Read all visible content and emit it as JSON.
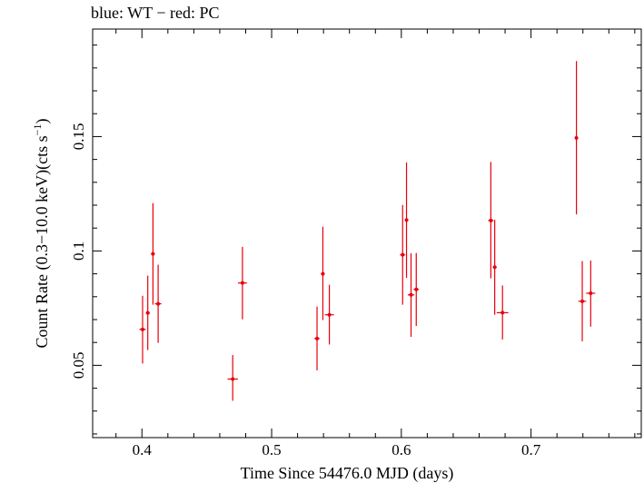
{
  "chart_data": {
    "type": "scatter",
    "title": "blue: WT − red: PC",
    "xlabel": "Time Since 54476.0 MJD (days)",
    "ylabel": "Count Rate (0.3−10.0 keV)(cts s",
    "ylabel_sup": "−1",
    "ylabel_close": ")",
    "xlim": [
      0.362,
      0.785
    ],
    "ylim": [
      0.0184,
      0.197
    ],
    "xticks": [
      {
        "value": 0.4,
        "label": "0.4"
      },
      {
        "value": 0.5,
        "label": "0.5"
      },
      {
        "value": 0.6,
        "label": "0.6"
      },
      {
        "value": 0.7,
        "label": "0.7"
      }
    ],
    "yticks": [
      {
        "value": 0.05,
        "label": "0.05"
      },
      {
        "value": 0.1,
        "label": "0.1"
      },
      {
        "value": 0.15,
        "label": "0.15"
      }
    ],
    "grid": false,
    "series": [
      {
        "color": "#e8000b",
        "points": [
          {
            "x": 0.4005,
            "y": 0.0657,
            "xerr": 0.0025,
            "ylo": 0.0508,
            "yhi": 0.0804
          },
          {
            "x": 0.4045,
            "y": 0.0729,
            "xerr": 0.0015,
            "ylo": 0.0567,
            "yhi": 0.0892
          },
          {
            "x": 0.4085,
            "y": 0.0987,
            "xerr": 0.0015,
            "ylo": 0.0765,
            "yhi": 0.1209
          },
          {
            "x": 0.4125,
            "y": 0.0769,
            "xerr": 0.0025,
            "ylo": 0.0598,
            "yhi": 0.094
          },
          {
            "x": 0.47,
            "y": 0.044,
            "xerr": 0.004,
            "ylo": 0.0345,
            "yhi": 0.0545
          },
          {
            "x": 0.4775,
            "y": 0.086,
            "xerr": 0.0035,
            "ylo": 0.0701,
            "yhi": 0.1018
          },
          {
            "x": 0.535,
            "y": 0.0617,
            "xerr": 0.002,
            "ylo": 0.0478,
            "yhi": 0.0757
          },
          {
            "x": 0.5395,
            "y": 0.09,
            "xerr": 0.0015,
            "ylo": 0.0698,
            "yhi": 0.1106
          },
          {
            "x": 0.5445,
            "y": 0.0721,
            "xerr": 0.0035,
            "ylo": 0.0591,
            "yhi": 0.0852
          },
          {
            "x": 0.601,
            "y": 0.0983,
            "xerr": 0.002,
            "ylo": 0.0765,
            "yhi": 0.1201
          },
          {
            "x": 0.604,
            "y": 0.1135,
            "xerr": 0.001,
            "ylo": 0.0882,
            "yhi": 0.1387
          },
          {
            "x": 0.6075,
            "y": 0.0808,
            "xerr": 0.0025,
            "ylo": 0.0624,
            "yhi": 0.099
          },
          {
            "x": 0.6115,
            "y": 0.0832,
            "xerr": 0.002,
            "ylo": 0.0672,
            "yhi": 0.0991
          },
          {
            "x": 0.669,
            "y": 0.1133,
            "xerr": 0.002,
            "ylo": 0.088,
            "yhi": 0.1389
          },
          {
            "x": 0.672,
            "y": 0.0929,
            "xerr": 0.0015,
            "ylo": 0.0721,
            "yhi": 0.1136
          },
          {
            "x": 0.678,
            "y": 0.073,
            "xerr": 0.0045,
            "ylo": 0.0613,
            "yhi": 0.0849
          },
          {
            "x": 0.735,
            "y": 0.1494,
            "xerr": 0.001,
            "ylo": 0.116,
            "yhi": 0.183
          },
          {
            "x": 0.7395,
            "y": 0.078,
            "xerr": 0.003,
            "ylo": 0.0605,
            "yhi": 0.0956
          },
          {
            "x": 0.746,
            "y": 0.0815,
            "xerr": 0.0035,
            "ylo": 0.0669,
            "yhi": 0.0958
          }
        ]
      }
    ]
  }
}
